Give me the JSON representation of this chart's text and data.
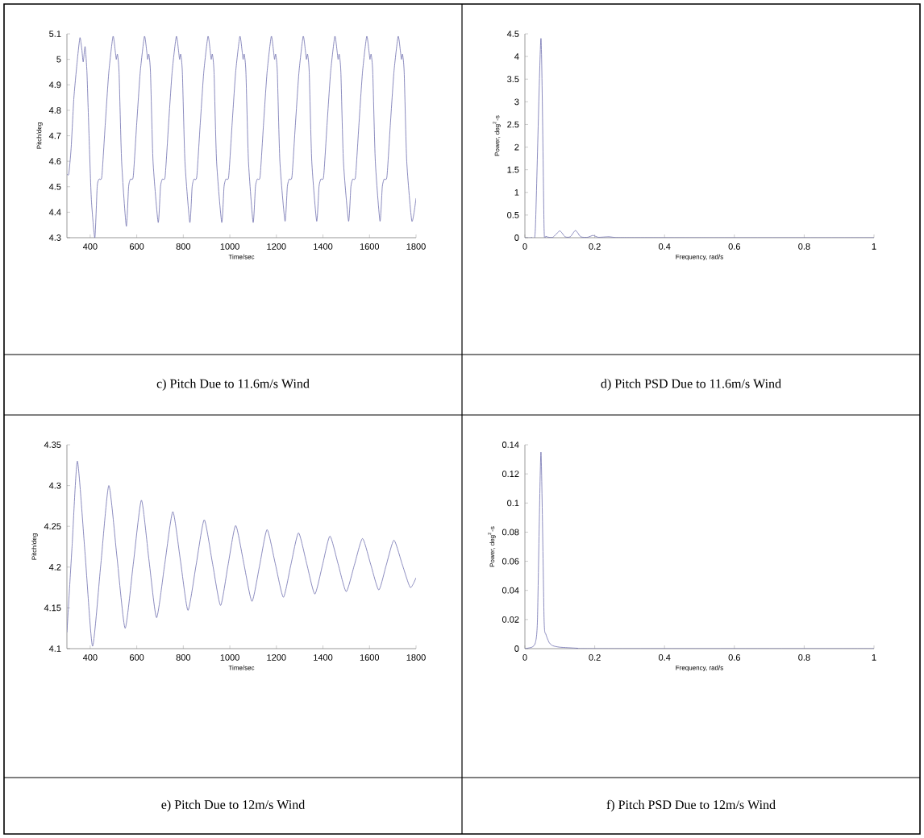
{
  "chart_data": [
    {
      "type": "line",
      "title": "c) Pitch Due to 11.6m/s Wind",
      "xlabel": "Time/sec",
      "ylabel": "Pitch/deg",
      "color": "#6f6fae",
      "xlim": [
        300,
        1800
      ],
      "ylim": [
        4.3,
        5.1
      ],
      "xticks": [
        400,
        600,
        800,
        1000,
        1200,
        1400,
        1600,
        1800
      ],
      "yticks": [
        4.3,
        4.4,
        4.5,
        4.6,
        4.7,
        4.8,
        4.9,
        5,
        5.1
      ],
      "x": [
        300,
        308,
        318,
        330,
        345,
        356,
        364,
        370,
        378,
        386,
        395,
        405,
        420,
        430,
        438,
        450,
        465,
        480,
        498,
        508,
        512,
        517,
        524,
        535,
        555,
        565,
        573,
        585,
        600,
        615,
        633,
        643,
        647,
        652,
        659,
        670,
        692,
        702,
        710,
        722,
        737,
        752,
        770,
        780,
        784,
        789,
        796,
        807,
        828,
        838,
        846,
        858,
        873,
        888,
        906,
        916,
        920,
        925,
        932,
        943,
        965,
        975,
        983,
        995,
        1010,
        1025,
        1043,
        1053,
        1057,
        1062,
        1069,
        1080,
        1100,
        1110,
        1118,
        1130,
        1145,
        1160,
        1178,
        1188,
        1192,
        1197,
        1204,
        1215,
        1237,
        1247,
        1255,
        1267,
        1282,
        1297,
        1315,
        1325,
        1329,
        1334,
        1341,
        1352,
        1373,
        1383,
        1391,
        1403,
        1418,
        1433,
        1451,
        1461,
        1465,
        1470,
        1477,
        1488,
        1510,
        1520,
        1528,
        1540,
        1555,
        1570,
        1588,
        1598,
        1602,
        1607,
        1614,
        1625,
        1645,
        1655,
        1663,
        1675,
        1690,
        1705,
        1723,
        1733,
        1737,
        1742,
        1749,
        1760,
        1782,
        1800
      ],
      "values": [
        4.55,
        4.55,
        4.65,
        4.85,
        5.0,
        5.085,
        5.04,
        4.99,
        5.05,
        4.95,
        4.7,
        4.45,
        4.3,
        4.5,
        4.53,
        4.54,
        4.75,
        4.95,
        5.09,
        5.03,
        5.0,
        5.02,
        4.95,
        4.6,
        4.345,
        4.5,
        4.53,
        4.54,
        4.75,
        4.95,
        5.09,
        5.03,
        5.0,
        5.02,
        4.95,
        4.6,
        4.36,
        4.5,
        4.53,
        4.54,
        4.75,
        4.95,
        5.09,
        5.03,
        5.0,
        5.02,
        4.95,
        4.6,
        4.36,
        4.5,
        4.53,
        4.54,
        4.75,
        4.95,
        5.09,
        5.03,
        5.0,
        5.02,
        4.95,
        4.6,
        4.36,
        4.5,
        4.53,
        4.54,
        4.75,
        4.95,
        5.09,
        5.03,
        5.0,
        5.02,
        4.95,
        4.6,
        4.36,
        4.5,
        4.53,
        4.54,
        4.75,
        4.95,
        5.09,
        5.03,
        5.0,
        5.02,
        4.95,
        4.6,
        4.365,
        4.5,
        4.53,
        4.54,
        4.75,
        4.95,
        5.09,
        5.03,
        5.0,
        5.02,
        4.95,
        4.6,
        4.365,
        4.5,
        4.53,
        4.54,
        4.75,
        4.95,
        5.09,
        5.03,
        5.0,
        5.02,
        4.95,
        4.6,
        4.365,
        4.5,
        4.53,
        4.54,
        4.75,
        4.95,
        5.09,
        5.03,
        5.0,
        5.02,
        4.95,
        4.6,
        4.365,
        4.5,
        4.53,
        4.54,
        4.75,
        4.95,
        5.09,
        5.03,
        5.0,
        5.02,
        4.95,
        4.6,
        4.365,
        4.455
      ]
    },
    {
      "type": "line",
      "title": "d) Pitch PSD Due to 11.6m/s Wind",
      "xlabel": "Frequency, rad/s",
      "ylabel": "Power, deg$^{2}$-s",
      "color": "#6f6fae",
      "xlim": [
        0,
        1
      ],
      "ylim": [
        0,
        4.5
      ],
      "xticks": [
        0,
        0.2,
        0.4,
        0.6,
        0.8,
        1
      ],
      "yticks": [
        0,
        0.5,
        1,
        1.5,
        2,
        2.5,
        3,
        3.5,
        4,
        4.5
      ],
      "x": [
        0,
        0.02,
        0.03,
        0.046,
        0.055,
        0.06,
        0.08,
        0.1,
        0.115,
        0.13,
        0.145,
        0.16,
        0.18,
        0.195,
        0.21,
        0.24,
        0.26,
        0.3,
        0.5,
        1
      ],
      "values": [
        0,
        0.005,
        0.2,
        4.4,
        0.2,
        0.03,
        0.01,
        0.15,
        0.02,
        0.02,
        0.16,
        0.02,
        0.01,
        0.05,
        0.01,
        0.02,
        0.005,
        0.002,
        0,
        0
      ]
    },
    {
      "type": "line",
      "title": "e) Pitch Due to 12m/s Wind",
      "xlabel": "Time/sec",
      "ylabel": "Pitch/deg",
      "color": "#6f6fae",
      "xlim": [
        300,
        1800
      ],
      "ylim": [
        4.1,
        4.35
      ],
      "xticks": [
        400,
        600,
        800,
        1000,
        1200,
        1400,
        1600,
        1800
      ],
      "yticks": [
        4.1,
        4.15,
        4.2,
        4.25,
        4.3,
        4.35
      ],
      "x": [
        300,
        322,
        345,
        378,
        410,
        445,
        480,
        515,
        550,
        585,
        620,
        652,
        685,
        720,
        755,
        788,
        820,
        855,
        890,
        925,
        960,
        992,
        1025,
        1060,
        1095,
        1128,
        1160,
        1195,
        1230,
        1262,
        1295,
        1330,
        1365,
        1398,
        1430,
        1465,
        1500,
        1535,
        1570,
        1605,
        1640,
        1672,
        1705,
        1740,
        1775,
        1800
      ],
      "values": [
        4.12,
        4.225,
        4.33,
        4.2165,
        4.103,
        4.2015,
        4.3,
        4.2125,
        4.125,
        4.2035,
        4.282,
        4.21,
        4.138,
        4.203,
        4.268,
        4.2075,
        4.147,
        4.2025,
        4.258,
        4.2055,
        4.153,
        4.202,
        4.251,
        4.2045,
        4.158,
        4.202,
        4.246,
        4.2045,
        4.163,
        4.2025,
        4.242,
        4.2045,
        4.167,
        4.2025,
        4.238,
        4.204,
        4.17,
        4.2025,
        4.235,
        4.2035,
        4.172,
        4.2025,
        4.233,
        4.204,
        4.175,
        4.187
      ]
    },
    {
      "type": "line",
      "title": "f) Pitch PSD Due to 12m/s Wind",
      "xlabel": "Frequency, rad/s",
      "ylabel": "Power, deg$^{2}$-s",
      "color": "#6f6fae",
      "xlim": [
        0,
        1
      ],
      "ylim": [
        0,
        0.14
      ],
      "xticks": [
        0,
        0.2,
        0.4,
        0.6,
        0.8,
        1
      ],
      "yticks": [
        0,
        0.02,
        0.04,
        0.06,
        0.08,
        0.1,
        0.12,
        0.14
      ],
      "x": [
        0,
        0.02,
        0.03,
        0.036,
        0.046,
        0.055,
        0.06,
        0.07,
        0.08,
        0.1,
        0.15,
        0.2,
        1
      ],
      "values": [
        0,
        0.001,
        0.004,
        0.02,
        0.135,
        0.02,
        0.01,
        0.004,
        0.002,
        0.001,
        0.0003,
        0,
        0
      ]
    }
  ]
}
